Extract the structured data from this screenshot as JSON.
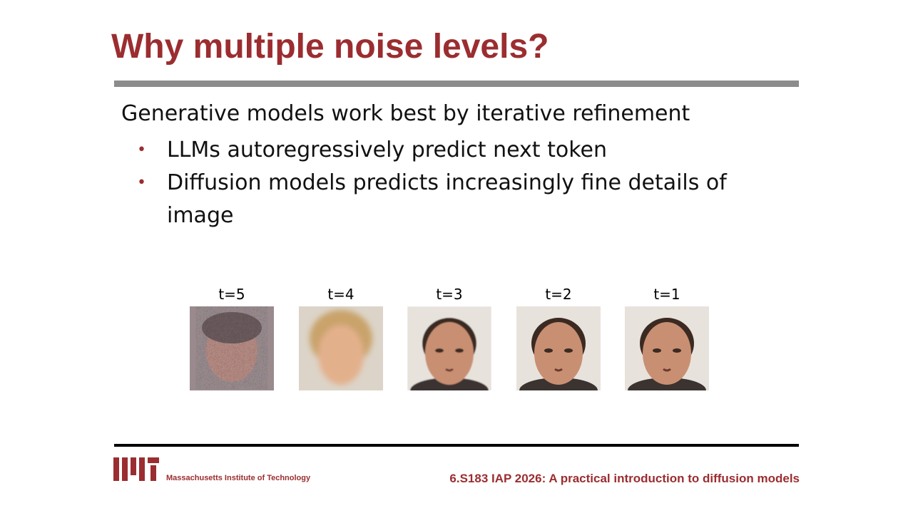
{
  "header": {
    "title": "Why multiple noise levels?"
  },
  "body": {
    "intro": "Generative models work best by iterative refinement",
    "bullets": [
      "LLMs autoregressively predict next token",
      "Diffusion models predicts increasingly fine details of image"
    ]
  },
  "figure": {
    "captions": [
      "t=5",
      "t=4",
      "t=3",
      "t=2",
      "t=1"
    ]
  },
  "footer": {
    "institution": "Massachusetts Institute of Technology",
    "course": "6.S183 IAP 2026: A practical introduction to diffusion models"
  }
}
